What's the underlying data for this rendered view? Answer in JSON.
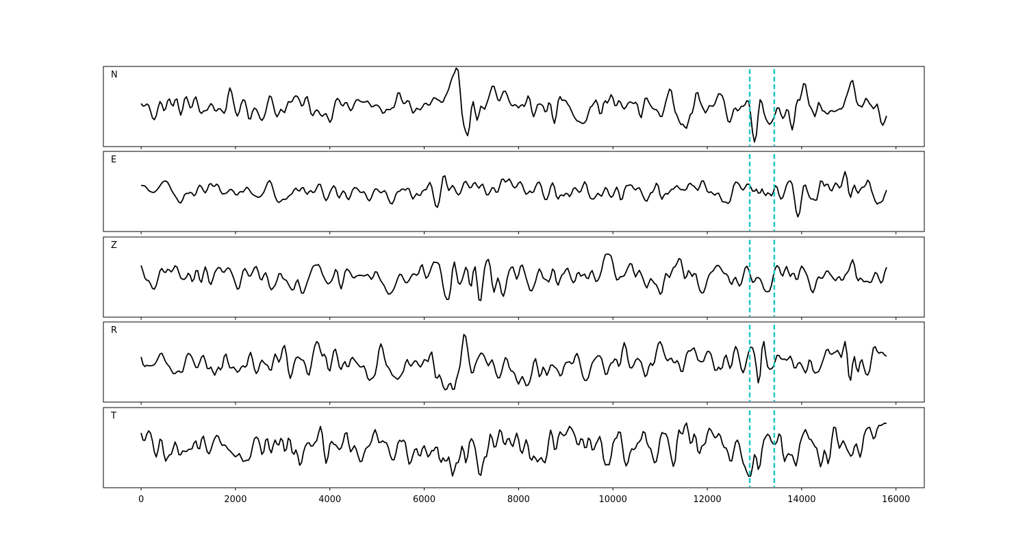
{
  "chart_data": {
    "type": "line",
    "xlim": [
      -800,
      16600
    ],
    "x_ticks": [
      0,
      2000,
      4000,
      6000,
      8000,
      10000,
      12000,
      14000,
      16000
    ],
    "x_tick_labels": [
      "0",
      "2000",
      "4000",
      "6000",
      "8000",
      "10000",
      "12000",
      "14000",
      "16000"
    ],
    "n_samples": 15800,
    "marker_lines": [
      12900,
      13420
    ],
    "marker_color": "#1ec8c8",
    "trace_color": "#000000",
    "grid": false,
    "panels": [
      {
        "label": "N",
        "ylim": [
          -1.25,
          1.25
        ],
        "envelope": [
          [
            0,
            0.5
          ],
          [
            6000,
            0.5
          ],
          [
            6700,
            0.9
          ],
          [
            7500,
            0.6
          ],
          [
            9000,
            0.6
          ],
          [
            12800,
            0.55
          ],
          [
            13100,
            1.0
          ],
          [
            13500,
            0.6
          ],
          [
            15800,
            0.65
          ]
        ]
      },
      {
        "label": "E",
        "ylim": [
          -1.25,
          1.25
        ],
        "envelope": [
          [
            0,
            0.3
          ],
          [
            6000,
            0.35
          ],
          [
            6700,
            0.75
          ],
          [
            7500,
            0.45
          ],
          [
            12800,
            0.35
          ],
          [
            13100,
            1.05
          ],
          [
            13500,
            0.5
          ],
          [
            14700,
            0.75
          ],
          [
            15800,
            0.5
          ]
        ]
      },
      {
        "label": "Z",
        "ylim": [
          -1.25,
          1.25
        ],
        "envelope": [
          [
            0,
            0.4
          ],
          [
            6000,
            0.45
          ],
          [
            6750,
            1.05
          ],
          [
            7500,
            0.6
          ],
          [
            12800,
            0.45
          ],
          [
            13100,
            0.55
          ],
          [
            13500,
            0.45
          ],
          [
            15800,
            0.5
          ]
        ]
      },
      {
        "label": "R",
        "ylim": [
          -1.25,
          1.25
        ],
        "envelope": [
          [
            0,
            0.4
          ],
          [
            5700,
            0.55
          ],
          [
            6750,
            0.85
          ],
          [
            7500,
            0.55
          ],
          [
            12800,
            0.5
          ],
          [
            13100,
            1.05
          ],
          [
            13500,
            0.6
          ],
          [
            15000,
            0.85
          ],
          [
            15800,
            0.5
          ]
        ]
      },
      {
        "label": "T",
        "ylim": [
          -1.25,
          1.25
        ],
        "envelope": [
          [
            0,
            0.45
          ],
          [
            6000,
            0.55
          ],
          [
            6750,
            0.95
          ],
          [
            7500,
            0.7
          ],
          [
            12800,
            0.55
          ],
          [
            13150,
            1.05
          ],
          [
            13500,
            0.6
          ],
          [
            15800,
            0.7
          ]
        ]
      }
    ]
  }
}
